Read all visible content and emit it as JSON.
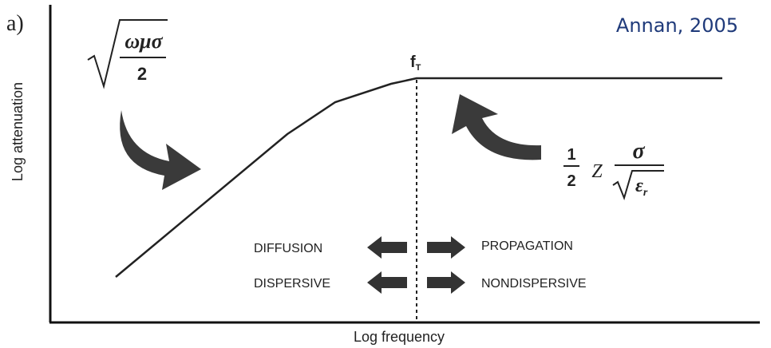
{
  "panel_label": "a)",
  "citation": "Annan, 2005",
  "axes": {
    "y_label": "Log attenuation",
    "x_label": "Log frequency"
  },
  "transition": {
    "symbol": "f",
    "subscript": "T"
  },
  "formula_left": {
    "numerator": "ωμσ",
    "denominator": "2"
  },
  "formula_right": {
    "coefficient_numerator": "1",
    "coefficient_denominator": "2",
    "factor": "Z",
    "numerator": "σ",
    "denominator_symbol": "ε",
    "denominator_subscript": "r"
  },
  "regimes": [
    {
      "left": "DIFFUSION",
      "right": "PROPAGATION"
    },
    {
      "left": "DISPERSIVE",
      "right": "NONDISPERSIVE"
    }
  ]
}
